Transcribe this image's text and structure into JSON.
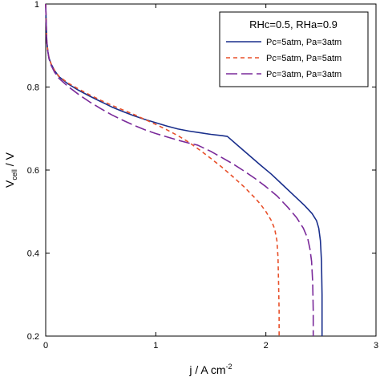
{
  "chart_data": {
    "type": "line",
    "xlabel": {
      "main": "j / A cm",
      "sup": "-2"
    },
    "ylabel": {
      "main": "V",
      "sub": "cell",
      "rest": " / V"
    },
    "xlim": [
      0,
      3
    ],
    "ylim": [
      0.2,
      1.0
    ],
    "xticks": [
      0,
      1,
      2,
      3
    ],
    "yticks": [
      0.2,
      0.4,
      0.6,
      0.8,
      1.0
    ],
    "xtick_labels": [
      "0",
      "1",
      "2",
      "3"
    ],
    "ytick_labels": [
      "0.2",
      "0.4",
      "0.6",
      "0.8",
      "1"
    ],
    "grid": false,
    "legend": {
      "title": "RHc=0.5, RHa=0.9",
      "placement": "top-right"
    },
    "series": [
      {
        "name": "Pc=5atm, Pa=3atm",
        "color": "#1a2f8c",
        "dash": "solid",
        "x": [
          0.0,
          0.005,
          0.01,
          0.02,
          0.03,
          0.05,
          0.08,
          0.12,
          0.2,
          0.3,
          0.4,
          0.5,
          0.6,
          0.7,
          0.8,
          0.9,
          1.0,
          1.1,
          1.2,
          1.3,
          1.4,
          1.5,
          1.6,
          1.65,
          1.75,
          1.85,
          1.95,
          2.05,
          2.15,
          2.25,
          2.35,
          2.42,
          2.46,
          2.48,
          2.495,
          2.505,
          2.51,
          2.51
        ],
        "y": [
          1.0,
          0.95,
          0.91,
          0.885,
          0.87,
          0.855,
          0.84,
          0.825,
          0.808,
          0.792,
          0.778,
          0.765,
          0.752,
          0.741,
          0.731,
          0.722,
          0.714,
          0.706,
          0.699,
          0.694,
          0.69,
          0.686,
          0.683,
          0.681,
          0.658,
          0.635,
          0.612,
          0.59,
          0.565,
          0.54,
          0.515,
          0.495,
          0.478,
          0.46,
          0.43,
          0.38,
          0.3,
          0.2
        ]
      },
      {
        "name": "Pc=5atm, Pa=5atm",
        "color": "#e8502a",
        "dash": "dashed",
        "x": [
          0.0,
          0.005,
          0.01,
          0.02,
          0.03,
          0.05,
          0.08,
          0.12,
          0.2,
          0.3,
          0.4,
          0.5,
          0.6,
          0.7,
          0.8,
          0.9,
          1.0,
          1.1,
          1.2,
          1.3,
          1.4,
          1.5,
          1.6,
          1.7,
          1.8,
          1.9,
          1.95,
          2.0,
          2.05,
          2.08,
          2.1,
          2.11,
          2.115,
          2.12,
          2.12
        ],
        "y": [
          1.0,
          0.95,
          0.91,
          0.885,
          0.87,
          0.855,
          0.84,
          0.826,
          0.81,
          0.795,
          0.781,
          0.768,
          0.756,
          0.745,
          0.734,
          0.722,
          0.71,
          0.697,
          0.683,
          0.667,
          0.648,
          0.628,
          0.607,
          0.584,
          0.56,
          0.533,
          0.518,
          0.5,
          0.478,
          0.458,
          0.43,
          0.39,
          0.33,
          0.26,
          0.2
        ]
      },
      {
        "name": "Pc=3atm, Pa=3atm",
        "color": "#7a2a9a",
        "dash": "longdash",
        "x": [
          0.0,
          0.005,
          0.01,
          0.02,
          0.03,
          0.05,
          0.08,
          0.12,
          0.2,
          0.3,
          0.4,
          0.5,
          0.6,
          0.7,
          0.8,
          0.9,
          1.0,
          1.1,
          1.2,
          1.3,
          1.38,
          1.5,
          1.6,
          1.7,
          1.8,
          1.9,
          2.0,
          2.1,
          2.2,
          2.28,
          2.34,
          2.38,
          2.4,
          2.415,
          2.425,
          2.43,
          2.43
        ],
        "y": [
          1.0,
          0.95,
          0.91,
          0.885,
          0.868,
          0.852,
          0.836,
          0.821,
          0.802,
          0.782,
          0.764,
          0.748,
          0.733,
          0.72,
          0.708,
          0.697,
          0.688,
          0.68,
          0.672,
          0.665,
          0.66,
          0.645,
          0.63,
          0.615,
          0.598,
          0.58,
          0.56,
          0.538,
          0.51,
          0.485,
          0.46,
          0.435,
          0.41,
          0.38,
          0.33,
          0.26,
          0.2
        ]
      }
    ]
  }
}
